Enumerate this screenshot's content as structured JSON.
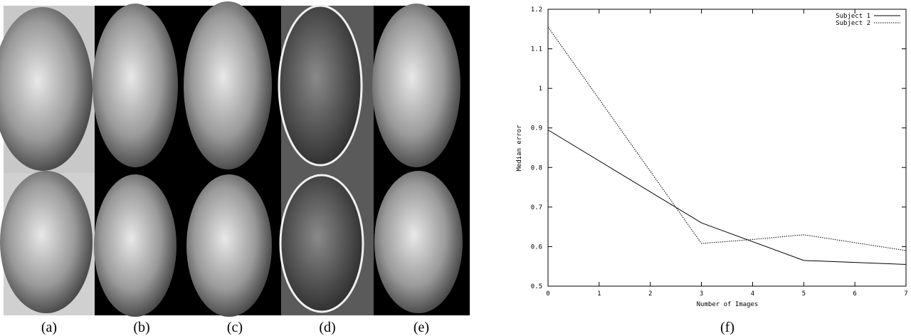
{
  "figure": {
    "panel_labels": [
      "(a)",
      "(b)",
      "(c)",
      "(d)",
      "(e)",
      "(f)"
    ]
  },
  "chart_data": {
    "type": "line",
    "xlabel": "Number of Images",
    "ylabel": "Median error",
    "xlim": [
      0,
      7
    ],
    "xticks": [
      0,
      1,
      2,
      3,
      4,
      5,
      6,
      7
    ],
    "ylim": [
      0.5,
      1.2
    ],
    "yticks": [
      0.5,
      0.6,
      0.7,
      0.8,
      0.9,
      1,
      1.1,
      1.2
    ],
    "legend": "upper right",
    "series": [
      {
        "name": "Subject 1",
        "color": "#000000",
        "dash": "solid",
        "x": [
          0,
          3,
          5,
          7
        ],
        "values": [
          0.895,
          0.66,
          0.565,
          0.555
        ]
      },
      {
        "name": "Subject 2",
        "color": "#000000",
        "dash": "dotted",
        "x": [
          0,
          3,
          4,
          5,
          7
        ],
        "values": [
          1.155,
          0.608,
          0.618,
          0.63,
          0.59
        ]
      }
    ]
  }
}
